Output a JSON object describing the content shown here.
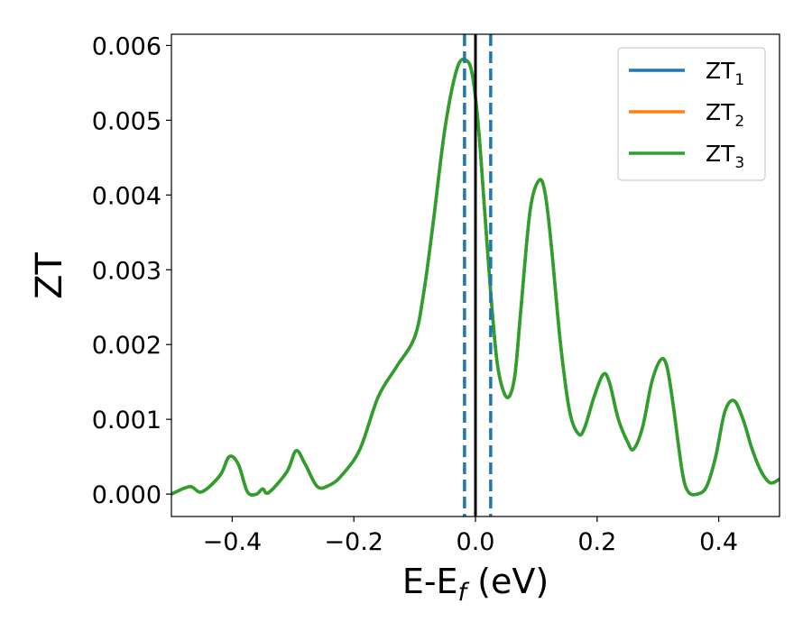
{
  "chart_data": {
    "type": "line",
    "xlabel": {
      "main": "E-E",
      "sub": "f",
      "suffix": " (eV)"
    },
    "ylabel": "ZT",
    "xlim": [
      -0.5,
      0.5
    ],
    "ylim": [
      -0.0003,
      0.00615
    ],
    "xticks": [
      -0.4,
      -0.2,
      0.0,
      0.2,
      0.4
    ],
    "xtick_labels": [
      "−0.4",
      "−0.2",
      "0.0",
      "0.2",
      "0.4"
    ],
    "yticks": [
      0.0,
      0.001,
      0.002,
      0.003,
      0.004,
      0.005,
      0.006
    ],
    "ytick_labels": [
      "0.000",
      "0.001",
      "0.002",
      "0.003",
      "0.004",
      "0.005",
      "0.006"
    ],
    "grid": false,
    "legend": {
      "position": "top-right"
    },
    "vlines": [
      {
        "x": -0.018,
        "style": "dashed",
        "color": "#1f77b4"
      },
      {
        "x": 0.0,
        "style": "solid",
        "color": "#000000"
      },
      {
        "x": 0.025,
        "style": "dashed",
        "color": "#1f77b4"
      }
    ],
    "series": [
      {
        "name": "ZT",
        "subscript": "1",
        "color": "#1f77b4",
        "x": [
          -0.5,
          -0.47,
          -0.45,
          -0.42,
          -0.405,
          -0.39,
          -0.375,
          -0.36,
          -0.35,
          -0.34,
          -0.31,
          -0.295,
          -0.28,
          -0.26,
          -0.24,
          -0.22,
          -0.19,
          -0.16,
          -0.13,
          -0.1,
          -0.085,
          -0.07,
          -0.05,
          -0.03,
          -0.015,
          -0.005,
          0.005,
          0.015,
          0.025,
          0.035,
          0.045,
          0.055,
          0.065,
          0.075,
          0.09,
          0.105,
          0.115,
          0.125,
          0.14,
          0.155,
          0.17,
          0.18,
          0.195,
          0.21,
          0.22,
          0.235,
          0.25,
          0.26,
          0.275,
          0.29,
          0.305,
          0.315,
          0.325,
          0.34,
          0.35,
          0.365,
          0.38,
          0.395,
          0.41,
          0.425,
          0.44,
          0.455,
          0.47,
          0.485,
          0.5
        ],
        "y": [
          0.0,
          0.0001,
          3e-05,
          0.00025,
          0.0005,
          0.0004,
          3e-05,
          0.0,
          7e-05,
          2e-05,
          0.0003,
          0.00058,
          0.0004,
          0.0001,
          0.00012,
          0.00025,
          0.0006,
          0.0013,
          0.0017,
          0.0021,
          0.0027,
          0.0036,
          0.0049,
          0.0057,
          0.0058,
          0.0056,
          0.0049,
          0.0038,
          0.0027,
          0.0018,
          0.0014,
          0.0013,
          0.0016,
          0.0025,
          0.0038,
          0.0042,
          0.004,
          0.0033,
          0.002,
          0.0011,
          0.0008,
          0.0009,
          0.0013,
          0.0016,
          0.0015,
          0.001,
          0.0007,
          0.0006,
          0.0009,
          0.0015,
          0.0018,
          0.0017,
          0.0012,
          0.0003,
          3e-05,
          0.0,
          0.0001,
          0.0005,
          0.0011,
          0.00125,
          0.001,
          0.0006,
          0.0003,
          0.00015,
          0.0002
        ]
      },
      {
        "name": "ZT",
        "subscript": "2",
        "color": "#ff7f0e",
        "x": [
          -0.5,
          -0.47,
          -0.45,
          -0.42,
          -0.405,
          -0.39,
          -0.375,
          -0.36,
          -0.35,
          -0.34,
          -0.31,
          -0.295,
          -0.28,
          -0.26,
          -0.24,
          -0.22,
          -0.19,
          -0.16,
          -0.13,
          -0.1,
          -0.085,
          -0.07,
          -0.05,
          -0.03,
          -0.015,
          -0.005,
          0.005,
          0.015,
          0.025,
          0.035,
          0.045,
          0.055,
          0.065,
          0.075,
          0.09,
          0.105,
          0.115,
          0.125,
          0.14,
          0.155,
          0.17,
          0.18,
          0.195,
          0.21,
          0.22,
          0.235,
          0.25,
          0.26,
          0.275,
          0.29,
          0.305,
          0.315,
          0.325,
          0.34,
          0.35,
          0.365,
          0.38,
          0.395,
          0.41,
          0.425,
          0.44,
          0.455,
          0.47,
          0.485,
          0.5
        ],
        "y": [
          0.0,
          0.0001,
          3e-05,
          0.00025,
          0.0005,
          0.0004,
          3e-05,
          0.0,
          7e-05,
          2e-05,
          0.0003,
          0.00058,
          0.0004,
          0.0001,
          0.00012,
          0.00025,
          0.0006,
          0.0013,
          0.0017,
          0.0021,
          0.0027,
          0.0036,
          0.0049,
          0.0057,
          0.0058,
          0.0056,
          0.0049,
          0.0038,
          0.0027,
          0.0018,
          0.0014,
          0.0013,
          0.0016,
          0.0025,
          0.0038,
          0.0042,
          0.004,
          0.0033,
          0.002,
          0.0011,
          0.0008,
          0.0009,
          0.0013,
          0.0016,
          0.0015,
          0.001,
          0.0007,
          0.0006,
          0.0009,
          0.0015,
          0.0018,
          0.0017,
          0.0012,
          0.0003,
          3e-05,
          0.0,
          0.0001,
          0.0005,
          0.0011,
          0.00125,
          0.001,
          0.0006,
          0.0003,
          0.00015,
          0.0002
        ]
      },
      {
        "name": "ZT",
        "subscript": "3",
        "color": "#2ca02c",
        "x": [
          -0.5,
          -0.47,
          -0.45,
          -0.42,
          -0.405,
          -0.39,
          -0.375,
          -0.36,
          -0.35,
          -0.34,
          -0.31,
          -0.295,
          -0.28,
          -0.26,
          -0.24,
          -0.22,
          -0.19,
          -0.16,
          -0.13,
          -0.1,
          -0.085,
          -0.07,
          -0.05,
          -0.03,
          -0.015,
          -0.005,
          0.005,
          0.015,
          0.025,
          0.035,
          0.045,
          0.055,
          0.065,
          0.075,
          0.09,
          0.105,
          0.115,
          0.125,
          0.14,
          0.155,
          0.17,
          0.18,
          0.195,
          0.21,
          0.22,
          0.235,
          0.25,
          0.26,
          0.275,
          0.29,
          0.305,
          0.315,
          0.325,
          0.34,
          0.35,
          0.365,
          0.38,
          0.395,
          0.41,
          0.425,
          0.44,
          0.455,
          0.47,
          0.485,
          0.5
        ],
        "y": [
          0.0,
          0.0001,
          3e-05,
          0.00025,
          0.0005,
          0.0004,
          3e-05,
          0.0,
          7e-05,
          2e-05,
          0.0003,
          0.00058,
          0.0004,
          0.0001,
          0.00012,
          0.00025,
          0.0006,
          0.0013,
          0.0017,
          0.0021,
          0.0027,
          0.0036,
          0.0049,
          0.0057,
          0.0058,
          0.0056,
          0.0049,
          0.0038,
          0.0027,
          0.0018,
          0.0014,
          0.0013,
          0.0016,
          0.0025,
          0.0038,
          0.0042,
          0.004,
          0.0033,
          0.002,
          0.0011,
          0.0008,
          0.0009,
          0.0013,
          0.0016,
          0.0015,
          0.001,
          0.0007,
          0.0006,
          0.0009,
          0.0015,
          0.0018,
          0.0017,
          0.0012,
          0.0003,
          3e-05,
          0.0,
          0.0001,
          0.0005,
          0.0011,
          0.00125,
          0.001,
          0.0006,
          0.0003,
          0.00015,
          0.0002
        ]
      }
    ]
  }
}
